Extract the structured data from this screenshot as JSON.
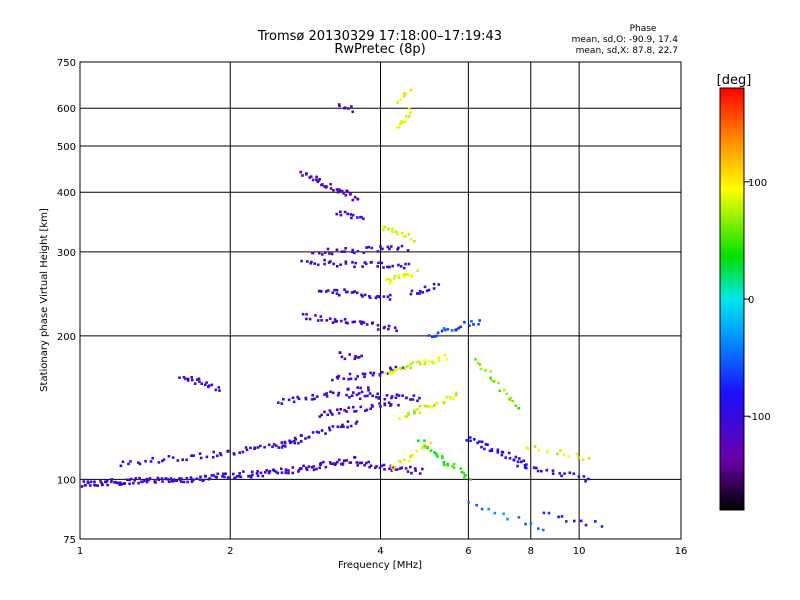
{
  "chart_data": {
    "type": "scatter",
    "title": "Tromsø 20130329 17:18:00–17:19:43",
    "subtitle": "RwPretec (8p)",
    "xlabel": "Frequency [MHz]",
    "ylabel": "Stationary phase Virtual Height [km]",
    "x_scale": "log",
    "y_scale": "log",
    "xlim": [
      1,
      16
    ],
    "ylim": [
      75,
      750
    ],
    "x_ticks": [
      1,
      2,
      4,
      6,
      8,
      10,
      16
    ],
    "x_tick_labels": [
      "1",
      "2",
      "4",
      "6",
      "8",
      "10",
      "16"
    ],
    "y_ticks": [
      75,
      100,
      200,
      300,
      400,
      500,
      600,
      750
    ],
    "y_tick_labels": [
      "75",
      "100",
      "200",
      "300",
      "400",
      "500",
      "600",
      "750"
    ],
    "grid": true,
    "phase_stats": {
      "header": "Phase",
      "line1": "mean, sd,O: -90.9, 17.4",
      "line2": "mean, sd,X:  87.8, 22.7"
    },
    "colorbar": {
      "unit_label": "[deg]",
      "range": [
        -180,
        180
      ],
      "ticks": [
        100,
        0,
        -100
      ],
      "tick_labels": [
        "100",
        "0",
        "-100"
      ]
    },
    "series": [
      {
        "mode": "O",
        "mean_phase": -90.9,
        "traces": [
          {
            "f": [
              1.0,
              1.6
            ],
            "h": [
              98,
              100
            ],
            "n": 70,
            "phase": -105
          },
          {
            "f": [
              1.6,
              2.6
            ],
            "h": [
              100,
              104
            ],
            "n": 60,
            "phase": -100
          },
          {
            "f": [
              2.6,
              3.6
            ],
            "h": [
              104,
              110
            ],
            "n": 40,
            "phase": -110
          },
          {
            "f": [
              3.6,
              4.8
            ],
            "h": [
              108,
              104
            ],
            "n": 30,
            "phase": -115
          },
          {
            "f": [
              1.2,
              1.9
            ],
            "h": [
              108,
              113
            ],
            "n": 25,
            "phase": -95
          },
          {
            "f": [
              1.9,
              2.8
            ],
            "h": [
              113,
              120
            ],
            "n": 28,
            "phase": -100
          },
          {
            "f": [
              2.5,
              3.6
            ],
            "h": [
              118,
              132
            ],
            "n": 30,
            "phase": -105
          },
          {
            "f": [
              3.0,
              4.3
            ],
            "h": [
              136,
              145
            ],
            "n": 30,
            "phase": -110
          },
          {
            "f": [
              3.5,
              4.8
            ],
            "h": [
              150,
              148
            ],
            "n": 28,
            "phase": -100
          },
          {
            "f": [
              1.6,
              1.9
            ],
            "h": [
              165,
              155
            ],
            "n": 20,
            "phase": -110
          },
          {
            "f": [
              2.5,
              3.8
            ],
            "h": [
              145,
              155
            ],
            "n": 30,
            "phase": -100
          },
          {
            "f": [
              3.2,
              4.4
            ],
            "h": [
              162,
              170
            ],
            "n": 25,
            "phase": -105
          },
          {
            "f": [
              3.3,
              3.7
            ],
            "h": [
              182,
              180
            ],
            "n": 10,
            "phase": -115
          },
          {
            "f": [
              2.8,
              4.3
            ],
            "h": [
              220,
              207
            ],
            "n": 35,
            "phase": -110
          },
          {
            "f": [
              3.0,
              4.2
            ],
            "h": [
              250,
              240
            ],
            "n": 30,
            "phase": -105
          },
          {
            "f": [
              2.8,
              4.6
            ],
            "h": [
              285,
              280
            ],
            "n": 35,
            "phase": -100
          },
          {
            "f": [
              2.9,
              4.5
            ],
            "h": [
              300,
              305
            ],
            "n": 30,
            "phase": -110
          },
          {
            "f": [
              2.8,
              3.6
            ],
            "h": [
              440,
              385
            ],
            "n": 35,
            "phase": -115
          },
          {
            "f": [
              3.3,
              3.7
            ],
            "h": [
              360,
              355
            ],
            "n": 12,
            "phase": -105
          },
          {
            "f": [
              3.3,
              3.5
            ],
            "h": [
              610,
              595
            ],
            "n": 8,
            "phase": -120
          },
          {
            "f": [
              4.6,
              5.2
            ],
            "h": [
              245,
              255
            ],
            "n": 12,
            "phase": -100
          }
        ]
      },
      {
        "mode": "X",
        "mean_phase": 87.8,
        "traces": [
          {
            "f": [
              4.0,
              4.7
            ],
            "h": [
              340,
              320
            ],
            "n": 14,
            "phase": 85
          },
          {
            "f": [
              4.1,
              4.7
            ],
            "h": [
              260,
              270
            ],
            "n": 18,
            "phase": 90
          },
          {
            "f": [
              4.1,
              5.4
            ],
            "h": [
              168,
              180
            ],
            "n": 30,
            "phase": 85
          },
          {
            "f": [
              4.4,
              5.7
            ],
            "h": [
              135,
              150
            ],
            "n": 25,
            "phase": 80
          },
          {
            "f": [
              4.2,
              5.0
            ],
            "h": [
              105,
              118
            ],
            "n": 15,
            "phase": 95
          },
          {
            "f": [
              4.3,
              4.6
            ],
            "h": [
              545,
              590
            ],
            "n": 10,
            "phase": 90
          },
          {
            "f": [
              4.3,
              4.6
            ],
            "h": [
              625,
              650
            ],
            "n": 6,
            "phase": 95
          }
        ]
      },
      {
        "mode": "mixed",
        "traces": [
          {
            "f": [
              5.0,
              6.3
            ],
            "h": [
              200,
              215
            ],
            "n": 20,
            "phase": -60
          },
          {
            "f": [
              4.8,
              6.0
            ],
            "h": [
              120,
              100
            ],
            "n": 25,
            "phase": 40
          },
          {
            "f": [
              6.0,
              7.8
            ],
            "h": [
              122,
              108
            ],
            "n": 30,
            "phase": -90
          },
          {
            "f": [
              6.2,
              7.6
            ],
            "h": [
              180,
              140
            ],
            "n": 18,
            "phase": 60
          },
          {
            "f": [
              7.5,
              10.5
            ],
            "h": [
              108,
              100
            ],
            "n": 20,
            "phase": -100
          },
          {
            "f": [
              7.8,
              10.5
            ],
            "h": [
              118,
              110
            ],
            "n": 14,
            "phase": 80
          },
          {
            "f": [
              8.5,
              11.0
            ],
            "h": [
              85,
              80
            ],
            "n": 10,
            "phase": -80
          },
          {
            "f": [
              6.0,
              8.5
            ],
            "h": [
              90,
              78
            ],
            "n": 12,
            "phase": -40
          }
        ]
      }
    ]
  }
}
